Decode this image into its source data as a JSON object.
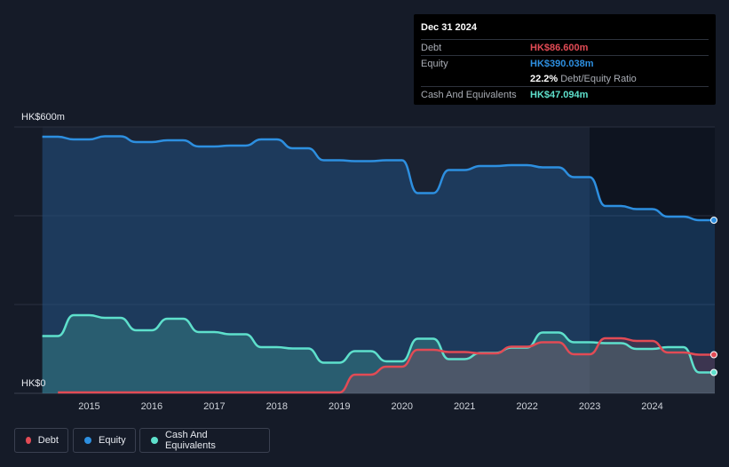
{
  "tooltip": {
    "date": "Dec 31 2024",
    "rows": [
      {
        "label": "Debt",
        "value": "HK$86.600m",
        "color": "#e24b55",
        "extra": ""
      },
      {
        "label": "Equity",
        "value": "HK$390.038m",
        "color": "#2d8fe0",
        "extra": ""
      },
      {
        "label": "",
        "value": "22.2%",
        "color": "#ffffff",
        "extra": "Debt/Equity Ratio"
      },
      {
        "label": "Cash And Equivalents",
        "value": "HK$47.094m",
        "color": "#5ee0cc",
        "extra": ""
      }
    ]
  },
  "legend": [
    {
      "name": "Debt",
      "color": "#e24b55"
    },
    {
      "name": "Equity",
      "color": "#2d8fe0"
    },
    {
      "name": "Cash And Equivalents",
      "color": "#5ee0cc"
    }
  ],
  "chart_data": {
    "type": "area",
    "ylim": [
      0,
      600
    ],
    "y_tick_labels": [
      "HK$0",
      "HK$600m"
    ],
    "x_tick_labels": [
      "2015",
      "2016",
      "2017",
      "2018",
      "2019",
      "2020",
      "2021",
      "2022",
      "2023",
      "2024"
    ],
    "grid": true,
    "series": [
      {
        "name": "Equity",
        "color": "#2d8fe0",
        "points": [
          [
            2014.25,
            578
          ],
          [
            2014.5,
            578
          ],
          [
            2014.75,
            572
          ],
          [
            2015.0,
            572
          ],
          [
            2015.25,
            579
          ],
          [
            2015.5,
            579
          ],
          [
            2015.75,
            566
          ],
          [
            2016.0,
            566
          ],
          [
            2016.25,
            570
          ],
          [
            2016.5,
            570
          ],
          [
            2016.75,
            556
          ],
          [
            2017.0,
            556
          ],
          [
            2017.25,
            558
          ],
          [
            2017.5,
            558
          ],
          [
            2017.75,
            572
          ],
          [
            2018.0,
            572
          ],
          [
            2018.25,
            552
          ],
          [
            2018.5,
            552
          ],
          [
            2018.75,
            525
          ],
          [
            2019.0,
            525
          ],
          [
            2019.25,
            523
          ],
          [
            2019.5,
            523
          ],
          [
            2019.75,
            525
          ],
          [
            2020.0,
            525
          ],
          [
            2020.25,
            451
          ],
          [
            2020.5,
            451
          ],
          [
            2020.75,
            503
          ],
          [
            2021.0,
            503
          ],
          [
            2021.25,
            512
          ],
          [
            2021.5,
            512
          ],
          [
            2021.75,
            514
          ],
          [
            2022.0,
            514
          ],
          [
            2022.25,
            509
          ],
          [
            2022.5,
            509
          ],
          [
            2022.75,
            487
          ],
          [
            2023.0,
            487
          ],
          [
            2023.25,
            422
          ],
          [
            2023.5,
            422
          ],
          [
            2023.75,
            415
          ],
          [
            2024.0,
            415
          ],
          [
            2024.25,
            398
          ],
          [
            2024.5,
            398
          ],
          [
            2024.75,
            390
          ],
          [
            2025.0,
            390
          ]
        ]
      },
      {
        "name": "Cash And Equivalents",
        "color": "#5ee0cc",
        "points": [
          [
            2014.25,
            129
          ],
          [
            2014.5,
            129
          ],
          [
            2014.75,
            176
          ],
          [
            2015.0,
            176
          ],
          [
            2015.25,
            170
          ],
          [
            2015.5,
            170
          ],
          [
            2015.75,
            142
          ],
          [
            2016.0,
            142
          ],
          [
            2016.25,
            168
          ],
          [
            2016.5,
            168
          ],
          [
            2016.75,
            138
          ],
          [
            2017.0,
            138
          ],
          [
            2017.25,
            133
          ],
          [
            2017.5,
            133
          ],
          [
            2017.75,
            104
          ],
          [
            2018.0,
            104
          ],
          [
            2018.25,
            101
          ],
          [
            2018.5,
            101
          ],
          [
            2018.75,
            69
          ],
          [
            2019.0,
            69
          ],
          [
            2019.25,
            95
          ],
          [
            2019.5,
            95
          ],
          [
            2019.75,
            72
          ],
          [
            2020.0,
            72
          ],
          [
            2020.25,
            123
          ],
          [
            2020.5,
            123
          ],
          [
            2020.75,
            77
          ],
          [
            2021.0,
            77
          ],
          [
            2021.25,
            91
          ],
          [
            2021.5,
            91
          ],
          [
            2021.75,
            103
          ],
          [
            2022.0,
            103
          ],
          [
            2022.25,
            137
          ],
          [
            2022.5,
            137
          ],
          [
            2022.75,
            115
          ],
          [
            2023.0,
            115
          ],
          [
            2023.25,
            113
          ],
          [
            2023.5,
            113
          ],
          [
            2023.75,
            100
          ],
          [
            2024.0,
            100
          ],
          [
            2024.25,
            104
          ],
          [
            2024.5,
            104
          ],
          [
            2024.75,
            47
          ],
          [
            2025.0,
            47
          ]
        ]
      },
      {
        "name": "Debt",
        "color": "#e24b55",
        "points": [
          [
            2014.5,
            2
          ],
          [
            2014.75,
            2
          ],
          [
            2015.0,
            2
          ],
          [
            2015.25,
            2
          ],
          [
            2015.5,
            2
          ],
          [
            2015.75,
            2
          ],
          [
            2016.0,
            2
          ],
          [
            2016.25,
            2
          ],
          [
            2016.5,
            2
          ],
          [
            2016.75,
            2
          ],
          [
            2017.0,
            2
          ],
          [
            2017.25,
            2
          ],
          [
            2017.5,
            2
          ],
          [
            2017.75,
            2
          ],
          [
            2018.0,
            2
          ],
          [
            2018.25,
            2
          ],
          [
            2018.5,
            2
          ],
          [
            2018.75,
            2
          ],
          [
            2019.0,
            2
          ],
          [
            2019.25,
            42
          ],
          [
            2019.5,
            42
          ],
          [
            2019.75,
            60
          ],
          [
            2020.0,
            60
          ],
          [
            2020.25,
            98
          ],
          [
            2020.5,
            98
          ],
          [
            2020.75,
            93
          ],
          [
            2021.0,
            93
          ],
          [
            2021.25,
            90
          ],
          [
            2021.5,
            90
          ],
          [
            2021.75,
            105
          ],
          [
            2022.0,
            105
          ],
          [
            2022.25,
            115
          ],
          [
            2022.5,
            115
          ],
          [
            2022.75,
            88
          ],
          [
            2023.0,
            88
          ],
          [
            2023.25,
            124
          ],
          [
            2023.5,
            124
          ],
          [
            2023.75,
            118
          ],
          [
            2024.0,
            118
          ],
          [
            2024.25,
            92
          ],
          [
            2024.5,
            92
          ],
          [
            2024.75,
            87
          ],
          [
            2025.0,
            87
          ]
        ]
      }
    ]
  }
}
